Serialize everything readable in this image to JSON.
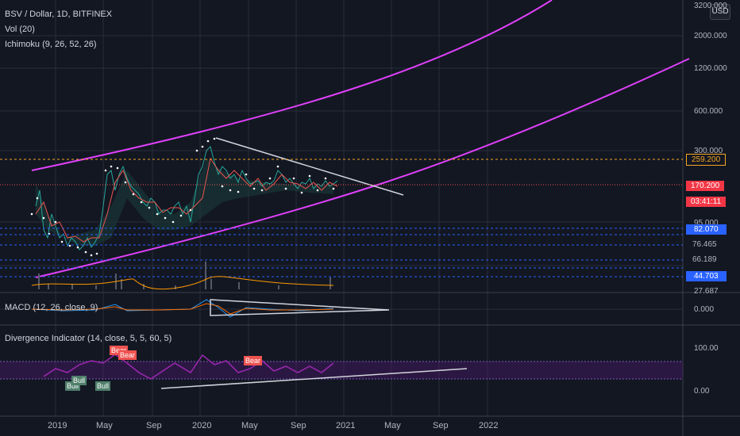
{
  "header": {
    "symbol": "BSV / Dollar, 1D, BITFINEX",
    "vol": "Vol (20)",
    "ichimoku": "Ichimoku (9, 26, 52, 26)",
    "currency_button": "USD"
  },
  "panes": {
    "macd_title": "MACD (12, 26, close, 9)",
    "divergence_title": "Divergence Indicator (14, close, 5, 5, 60, 5)"
  },
  "price_axis": {
    "ticks": [
      "3200.000",
      "2000.000",
      "1200.000",
      "600.000",
      "300.000",
      "95.000",
      "27.687"
    ],
    "badges": [
      {
        "text": "259.200",
        "type": "last-price",
        "bg": "#131722",
        "border": "#f5a623",
        "color": "#f5a623"
      },
      {
        "text": "170.200",
        "type": "current-price",
        "bg": "#f23645",
        "color": "#ffffff"
      },
      {
        "text": "03:41:11",
        "type": "countdown",
        "bg": "#f23645",
        "color": "#ffffff"
      },
      {
        "text": "82.070",
        "type": "level",
        "bg": "#2962ff",
        "color": "#ffffff"
      },
      {
        "text": "76.465",
        "type": "level",
        "bg": "#131722",
        "color": "#d1d4dc"
      },
      {
        "text": "66.189",
        "type": "level",
        "bg": "#131722",
        "color": "#d1d4dc"
      },
      {
        "text": "44.703",
        "type": "level",
        "bg": "#2962ff",
        "color": "#ffffff"
      }
    ]
  },
  "macd_axis": {
    "ticks": [
      "0.000"
    ]
  },
  "div_axis": {
    "ticks": [
      "100.00",
      "0.00"
    ]
  },
  "time_axis": {
    "labels": [
      "2019",
      "May",
      "Sep",
      "2020",
      "May",
      "Sep",
      "2021",
      "May",
      "Sep",
      "2022"
    ]
  },
  "signals": [
    {
      "text": "Bear",
      "kind": "bear"
    },
    {
      "text": "Bear",
      "kind": "bear"
    },
    {
      "text": "Bear",
      "kind": "bear"
    },
    {
      "text": "Bull",
      "kind": "bull"
    },
    {
      "text": "Bull",
      "kind": "bull"
    },
    {
      "text": "Bull",
      "kind": "bull"
    }
  ],
  "colors": {
    "background": "#131722",
    "grid": "#2a2e39",
    "channel": "#e040fb",
    "trendline": "#d1d4dc",
    "bear": "#ef5350",
    "bull": "#4f7f6b",
    "level_line": "#2962ff",
    "last_price_line": "#f5a623"
  }
}
